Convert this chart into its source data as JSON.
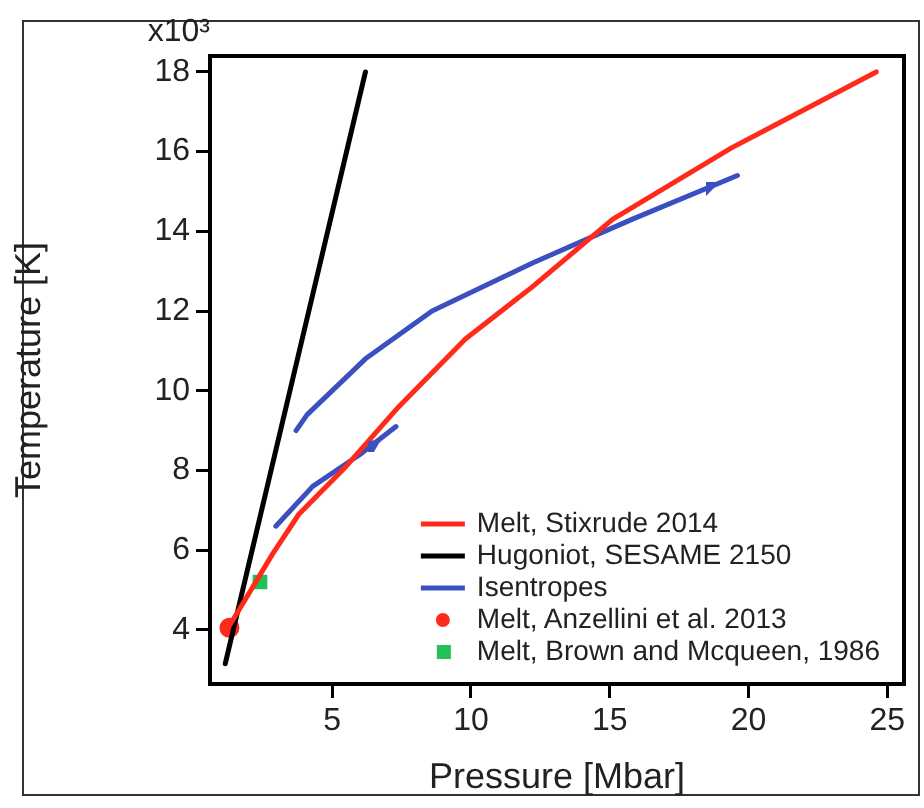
{
  "chart_data": {
    "type": "line",
    "xlabel": "Pressure [Mbar]",
    "ylabel": "Temperature [K]",
    "xlim": [
      0.6,
      25.6
    ],
    "ylim": [
      2.64,
      18.4
    ],
    "xticks": [
      5,
      10,
      15,
      20,
      25
    ],
    "yticks": [
      4,
      6,
      8,
      10,
      12,
      14,
      16,
      18
    ],
    "annotations": [
      "x10³"
    ],
    "grid": false,
    "legend": "bottom right",
    "line_style": "solid",
    "series": [
      {
        "name": "Melt, Stixrude 2014",
        "color": "#ff2a1a",
        "x": [
          1.3,
          2.85,
          3.8,
          5.5,
          7.4,
          9.8,
          12.2,
          15.1,
          19.4,
          24.6
        ],
        "values": [
          4.1,
          5.9,
          6.9,
          8.1,
          9.6,
          11.3,
          12.6,
          14.3,
          16.1,
          18
        ]
      },
      {
        "name": "Hugoniot, SESAME 2150",
        "color": "#000000",
        "x": [
          1.15,
          6.2
        ],
        "values": [
          3.15,
          18
        ]
      },
      {
        "name": "Isentropes",
        "color": "#3a4fc0",
        "x": [
          2.97,
          4.3,
          6.0,
          7.3
        ],
        "values": [
          6.6,
          7.6,
          8.4,
          9.1
        ]
      },
      {
        "color": "#3a4fc0",
        "x": [
          3.7,
          4.1,
          6.2,
          8.6,
          12.2,
          15.8,
          19.6
        ],
        "values": [
          9.0,
          9.4,
          10.8,
          12.0,
          13.2,
          14.3,
          15.4
        ]
      },
      {
        "name": "Melt, Anzellini et al. 2013",
        "type": "scatter",
        "marker": "circle",
        "color": "#ff2a1a",
        "x": [
          1.3
        ],
        "values": [
          4.05
        ]
      },
      {
        "name": "Melt, Brown and Mcqueen, 1986",
        "type": "scatter",
        "marker": "square",
        "color": "#22c055",
        "x": [
          2.4
        ],
        "values": [
          5.2
        ]
      }
    ]
  }
}
